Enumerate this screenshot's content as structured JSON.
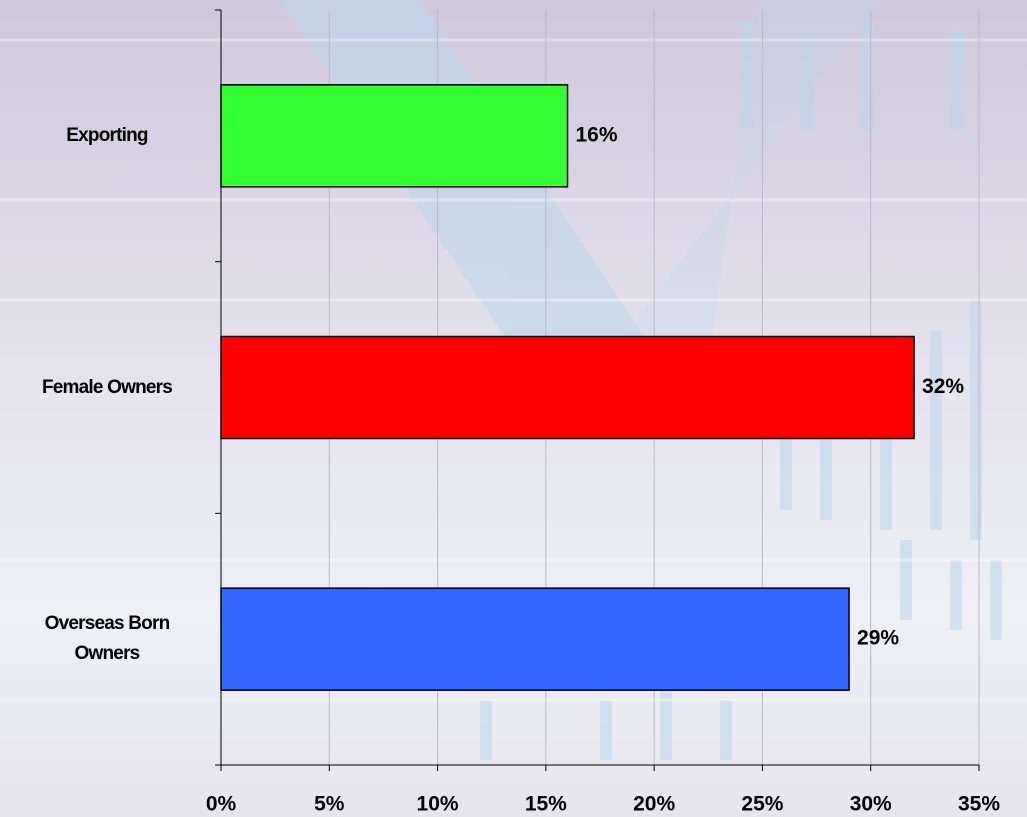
{
  "chart_data": {
    "type": "bar",
    "orientation": "horizontal",
    "categories": [
      "Exporting",
      "Female Owners",
      "Overseas Born Owners"
    ],
    "values": [
      16,
      32,
      29
    ],
    "value_labels": [
      "16%",
      "32%",
      "29%"
    ],
    "colors": [
      "#33ff33",
      "#ff0000",
      "#3366ff"
    ],
    "xlim": [
      0,
      35
    ],
    "xticks": [
      {
        "value": 0,
        "label": "0%"
      },
      {
        "value": 5,
        "label": "5%"
      },
      {
        "value": 10,
        "label": "10%"
      },
      {
        "value": 15,
        "label": "15%"
      },
      {
        "value": 20,
        "label": "20%"
      },
      {
        "value": 25,
        "label": "25%"
      },
      {
        "value": 30,
        "label": "30%"
      },
      {
        "value": 35,
        "label": "35%"
      }
    ],
    "grid": true
  }
}
